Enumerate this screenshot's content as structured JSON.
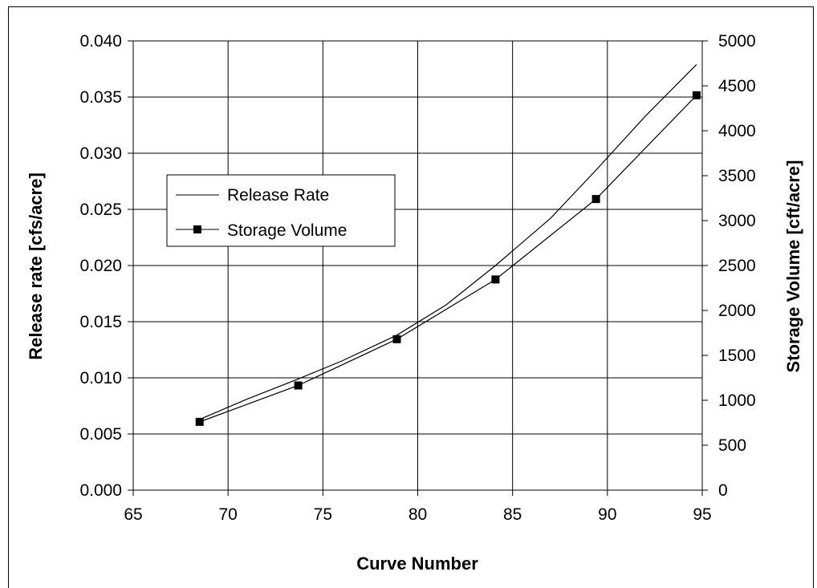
{
  "chart_data": {
    "type": "line",
    "xlabel": "Curve Number",
    "ylabel": "Release rate [cfs/acre]",
    "y2label": "Storage Volume [cft/acre]",
    "xlim": [
      65,
      95
    ],
    "ylim": [
      0,
      0.04
    ],
    "y2lim": [
      0,
      5000
    ],
    "x_ticks": [
      "65",
      "70",
      "75",
      "80",
      "85",
      "90",
      "95"
    ],
    "y_ticks": [
      "0.000",
      "0.005",
      "0.010",
      "0.015",
      "0.020",
      "0.025",
      "0.030",
      "0.035",
      "0.040"
    ],
    "y2_ticks": [
      "0",
      "500",
      "1000",
      "1500",
      "2000",
      "2500",
      "3000",
      "3500",
      "4000",
      "4500",
      "5000"
    ],
    "grid": true,
    "legend_position": "left",
    "series": [
      {
        "name": "Release Rate",
        "axis": "left",
        "marker": "none",
        "x": [
          68.5,
          71,
          73.7,
          76,
          78.9,
          81.5,
          84.1,
          87,
          89.4,
          92,
          94.7
        ],
        "y": [
          0.0063,
          0.0081,
          0.0099,
          0.0115,
          0.0138,
          0.0165,
          0.02,
          0.0242,
          0.0285,
          0.0333,
          0.0379
        ]
      },
      {
        "name": "Storage Volume",
        "axis": "right",
        "marker": "square",
        "x": [
          68.5,
          73.7,
          78.9,
          84.1,
          89.4,
          94.7
        ],
        "y": [
          760,
          1165,
          1680,
          2345,
          3240,
          4395
        ]
      }
    ]
  }
}
